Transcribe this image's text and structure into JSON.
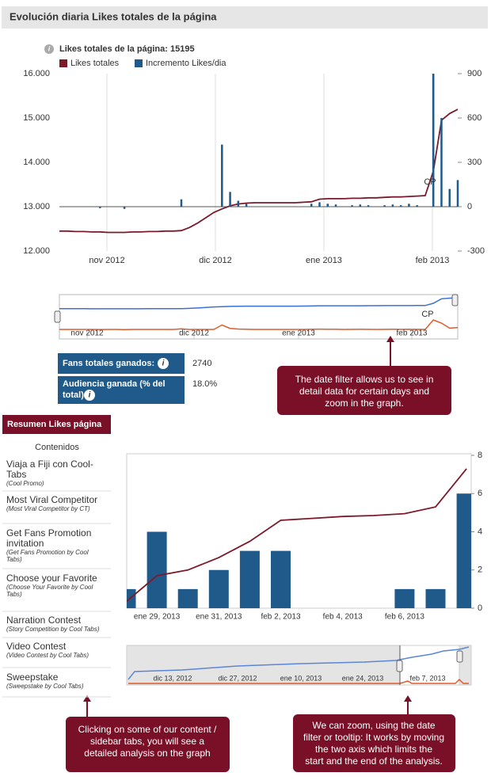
{
  "header": {
    "title": "Evolución diaria Likes totales de la página"
  },
  "chart_data": [
    {
      "type": "combo",
      "title": "Likes totales de la página: 15195",
      "series": [
        {
          "name": "Likes totales",
          "type": "line",
          "color": "#7b1a2a",
          "values": [
            12450,
            12450,
            12440,
            12440,
            12430,
            12430,
            12420,
            12420,
            12420,
            12430,
            12430,
            12440,
            12440,
            12450,
            12450,
            12460,
            12530,
            12630,
            12750,
            12870,
            12950,
            13020,
            13060,
            13080,
            13090,
            13090,
            13090,
            13090,
            13090,
            13090,
            13100,
            13110,
            13170,
            13180,
            13180,
            13180,
            13190,
            13190,
            13200,
            13200,
            13210,
            13220,
            13220,
            13230,
            13240,
            13250,
            13800,
            14950,
            15100,
            15195
          ]
        },
        {
          "name": "Incremento Likes/dia",
          "type": "bar",
          "color": "#1f5a8a",
          "axis": "y2",
          "values": [
            0,
            0,
            0,
            0,
            0,
            -10,
            0,
            0,
            -15,
            0,
            0,
            0,
            0,
            0,
            0,
            50,
            0,
            0,
            0,
            0,
            420,
            100,
            40,
            20,
            0,
            0,
            0,
            0,
            0,
            0,
            0,
            20,
            30,
            20,
            15,
            0,
            10,
            15,
            10,
            0,
            10,
            15,
            10,
            20,
            10,
            0,
            900,
            600,
            120,
            180
          ]
        }
      ],
      "ylim": [
        12000,
        16000
      ],
      "yticks": [
        {
          "value": 12000,
          "label": "12.000"
        },
        {
          "value": 13000,
          "label": "13.000"
        },
        {
          "value": 14000,
          "label": "14.000"
        },
        {
          "value": 15000,
          "label": "15.000"
        },
        {
          "value": 16000,
          "label": "16.000"
        }
      ],
      "y2lim": [
        -300,
        900
      ],
      "y2ticks": [
        -300,
        0,
        300,
        600,
        900
      ],
      "xticks": [
        "nov 2012",
        "dic 2012",
        "ene 2013",
        "feb 2013"
      ],
      "annotation": "CP"
    },
    {
      "type": "combo",
      "categories": [
        null,
        "ene 29, 2013",
        null,
        "ene 31, 2013",
        null,
        "feb 2, 2013",
        null,
        "feb 4, 2013",
        null,
        "feb 6, 2013",
        null,
        null
      ],
      "series": [
        {
          "type": "bar",
          "color": "#1f5a8a",
          "axis": "y2",
          "values": [
            1,
            4,
            1,
            2,
            3,
            3,
            0,
            0,
            0,
            1,
            1,
            6
          ]
        },
        {
          "type": "line",
          "color": "#7b1a2a",
          "axis": "y2",
          "values": [
            0.33,
            1.7,
            2.0,
            2.65,
            3.5,
            4.6,
            4.7,
            4.8,
            4.85,
            4.95,
            5.3,
            7.3
          ]
        }
      ],
      "y2lim": [
        0,
        8
      ],
      "y2ticks": [
        0,
        2,
        4,
        6,
        8
      ],
      "navigator_xticks": [
        "dic 13, 2012",
        "dic 27, 2012",
        "ene 10, 2013",
        "ene 24, 2013",
        "feb 7, 2013"
      ]
    }
  ],
  "stats": {
    "rows": [
      {
        "label": [
          "Fans totales ganados:"
        ],
        "value": "2740"
      },
      {
        "label": [
          "Audiencia ganada (% del",
          "total):"
        ],
        "value": "18.0%"
      }
    ]
  },
  "callouts": [
    {
      "lines": [
        "The date filter allows us to see in",
        "detail data for certain days and",
        "zoom in the graph."
      ]
    },
    {
      "lines": [
        "Clicking on some of our content /",
        "sidebar tabs, you will see a",
        "detailed analysis on the graph"
      ]
    },
    {
      "lines": [
        "We can zoom, using the date",
        "filter or tooltip: It works by moving",
        "the two axis which limits the",
        "start and the end of the analysis."
      ]
    }
  ],
  "sidebar": {
    "title": "Resumen Likes página",
    "section": "Contenidos",
    "items": [
      {
        "title": [
          "Viaja a Fiji con Cool-",
          "Tabs"
        ],
        "subtitle": [
          "(Cool Promo)"
        ]
      },
      {
        "title": [
          "Most Viral Competitor"
        ],
        "subtitle": [
          "(Most Viral Competitor by CT)"
        ]
      },
      {
        "title": [
          "Get Fans Promotion",
          "invitation"
        ],
        "subtitle": [
          "(Get Fans Promotion by Cool",
          "Tabs)"
        ]
      },
      {
        "title": [
          "Choose your Favorite"
        ],
        "subtitle": [
          "(Choose Your Favorite by Cool",
          "Tabs)"
        ]
      },
      {
        "title": [
          "Narration Contest"
        ],
        "subtitle": [
          "(Story Competition by Cool Tabs)"
        ]
      },
      {
        "title": [
          "Video Contest"
        ],
        "subtitle": [
          "(Video Contest by Cool Tabs)"
        ]
      },
      {
        "title": [
          "Sweepstake"
        ],
        "subtitle": [
          "(Sweepstake by Cool Tabs)"
        ]
      }
    ]
  }
}
